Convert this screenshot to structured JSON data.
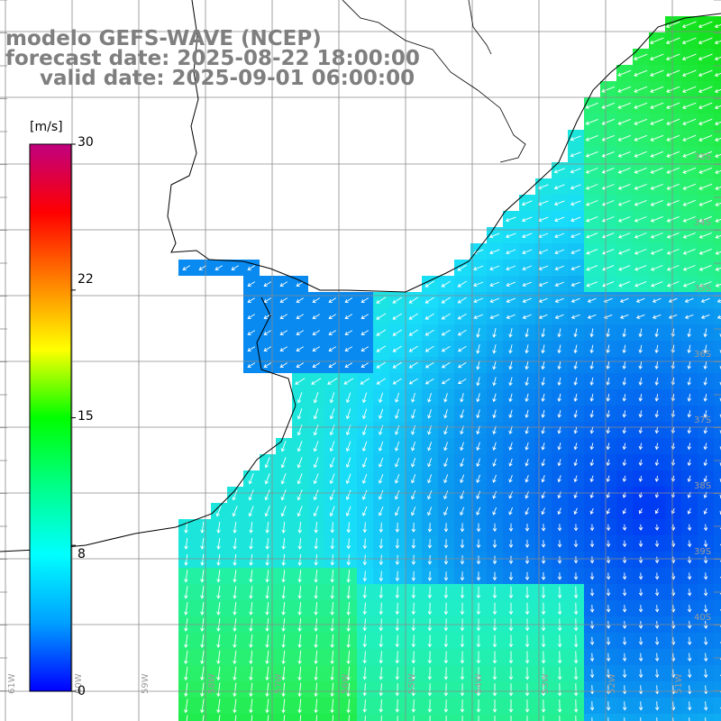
{
  "title": {
    "line1": "modelo GEFS-WAVE (NCEP)",
    "line2": "forecast date: 2025-08-22 18:00:00",
    "line3": "valid date: 2025-09-01 06:00:00"
  },
  "colorbar": {
    "unit": "[m/s]",
    "ticks": [
      "30",
      "22",
      "15",
      "8",
      "0"
    ],
    "tick_values": [
      30,
      22,
      15,
      8,
      0
    ],
    "min": 0,
    "max": 30,
    "colors": [
      "#0000ff",
      "#00a0ff",
      "#00ffff",
      "#00ff88",
      "#00ff00",
      "#ffff00",
      "#ff8000",
      "#ff0000",
      "#c0007f"
    ]
  },
  "lat_labels": [
    "33S",
    "34S",
    "35S",
    "36S",
    "37S",
    "38S",
    "39S",
    "40S"
  ],
  "lon_labels": [
    "61W",
    "60W",
    "59W",
    "58W",
    "57W",
    "56W",
    "55W",
    "54W",
    "53W",
    "52W",
    "51W"
  ],
  "field": {
    "variable": "wind speed and direction",
    "colors": {
      "calm": "#0000ff",
      "low": "#0a6ef0",
      "mid": "#18c8f0",
      "moderate": "#20f0c0",
      "strong": "#30f070",
      "strongest": "#10e010"
    }
  }
}
